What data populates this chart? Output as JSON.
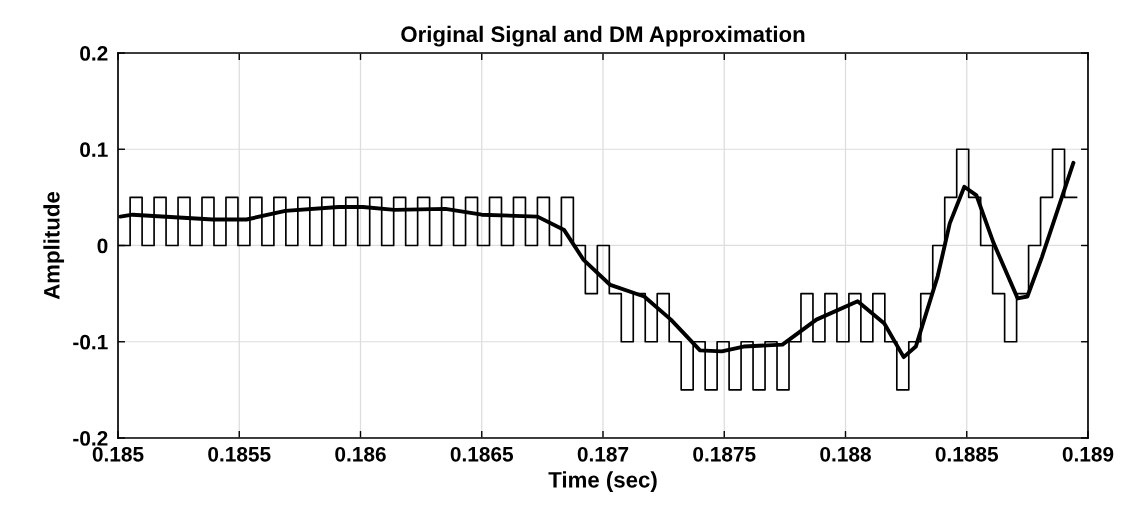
{
  "chart_data": {
    "type": "line",
    "title": "Original Signal and DM Approximation",
    "xlabel": "Time (sec)",
    "ylabel": "Amplitude",
    "xlim": [
      0.185,
      0.189
    ],
    "ylim": [
      -0.2,
      0.2
    ],
    "xticks": [
      0.185,
      0.1855,
      0.186,
      0.1865,
      0.187,
      0.1875,
      0.188,
      0.1885,
      0.189
    ],
    "yticks": [
      -0.2,
      -0.1,
      0,
      0.1,
      0.2
    ],
    "grid": true,
    "series": [
      {
        "type": "step",
        "color": "#000000",
        "x": [
          0.185,
          0.18505,
          0.1850994,
          0.1851488,
          0.1851982,
          0.1852476,
          0.185297,
          0.1853464,
          0.1853958,
          0.1854452,
          0.1854946,
          0.185544,
          0.1855934,
          0.1856428,
          0.1856922,
          0.1857416,
          0.185791,
          0.1858404,
          0.1858898,
          0.1859392,
          0.1859886,
          0.186038,
          0.1860874,
          0.1861368,
          0.1861862,
          0.1862356,
          0.186285,
          0.1863344,
          0.1863838,
          0.1864332,
          0.1864826,
          0.186532,
          0.1865814,
          0.1866308,
          0.1866802,
          0.1867296,
          0.186779,
          0.1868284,
          0.1868778,
          0.1869272,
          0.1869766,
          0.187026,
          0.1870754,
          0.1871248,
          0.1871742,
          0.1872236,
          0.187273,
          0.1873224,
          0.1873718,
          0.1874212,
          0.1874706,
          0.18752,
          0.1875694,
          0.1876188,
          0.1876682,
          0.1877176,
          0.187767,
          0.1878164,
          0.1878658,
          0.1879152,
          0.1879646,
          0.188014,
          0.1880634,
          0.1881128,
          0.1881622,
          0.1882116,
          0.188261,
          0.1883104,
          0.1883598,
          0.1884092,
          0.1884586,
          0.188508,
          0.1885574,
          0.1886068,
          0.1886562,
          0.1887056,
          0.188755,
          0.1888044,
          0.1888538,
          0.1889032,
          0.1889526
        ],
        "values": [
          0,
          0.05,
          0,
          0.05,
          0,
          0.05,
          0,
          0.05,
          0,
          0.05,
          0,
          0.05,
          0,
          0.05,
          0,
          0.05,
          0,
          0.05,
          0,
          0.05,
          0,
          0.05,
          0,
          0.05,
          0,
          0.05,
          0,
          0.05,
          0,
          0.05,
          0,
          0.05,
          0,
          0.05,
          0,
          0.05,
          0,
          0.05,
          0,
          -0.05,
          0,
          -0.05,
          -0.1,
          -0.05,
          -0.1,
          -0.05,
          -0.1,
          -0.15,
          -0.1,
          -0.15,
          -0.1,
          -0.15,
          -0.1,
          -0.15,
          -0.1,
          -0.15,
          -0.1,
          -0.05,
          -0.1,
          -0.05,
          -0.1,
          -0.05,
          -0.1,
          -0.05,
          -0.1,
          -0.15,
          -0.1,
          -0.05,
          0,
          0.05,
          0.1,
          0.05,
          0,
          -0.05,
          -0.1,
          -0.05,
          0,
          0.05,
          0.1,
          0.05,
          0.05
        ]
      },
      {
        "color": "#000000",
        "x": [
          0.18501,
          0.18506,
          0.18539,
          0.18553,
          0.18569,
          0.18591,
          0.18601,
          0.18614,
          0.18635,
          0.1865,
          0.18673,
          0.18684,
          0.18692,
          0.18703,
          0.18717,
          0.18728,
          0.1874,
          0.18749,
          0.18758,
          0.18774,
          0.18788,
          0.18805,
          0.18816,
          0.18824,
          0.18829,
          0.18838,
          0.18843,
          0.18849,
          0.18854,
          0.18861,
          0.18871,
          0.18875,
          0.18881,
          0.18894
        ],
        "values": [
          0.03,
          0.032,
          0.027,
          0.027,
          0.036,
          0.04,
          0.04,
          0.037,
          0.038,
          0.032,
          0.03,
          0.016,
          -0.015,
          -0.041,
          -0.053,
          -0.077,
          -0.109,
          -0.11,
          -0.105,
          -0.103,
          -0.077,
          -0.058,
          -0.081,
          -0.116,
          -0.105,
          -0.032,
          0.023,
          0.061,
          0.052,
          0.003,
          -0.055,
          -0.053,
          -0.012,
          0.086
        ]
      }
    ]
  }
}
